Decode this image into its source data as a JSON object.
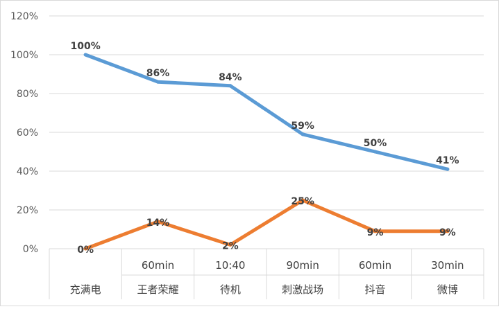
{
  "chart_data": {
    "type": "line",
    "title": "",
    "xlabel": "",
    "ylabel": "",
    "ylim": [
      0,
      120
    ],
    "yticks": [
      "0%",
      "20%",
      "40%",
      "60%",
      "80%",
      "100%",
      "120%"
    ],
    "grid": true,
    "legend": "none",
    "categories": [
      {
        "top": "",
        "bottom": "充满电"
      },
      {
        "top": "60min",
        "bottom": "王者荣耀"
      },
      {
        "top": "10:40",
        "bottom": "待机"
      },
      {
        "top": "90min",
        "bottom": "刺激战场"
      },
      {
        "top": "60min",
        "bottom": "抖音"
      },
      {
        "top": "30min",
        "bottom": "微博"
      }
    ],
    "series": [
      {
        "color": "#5b9bd5",
        "values": [
          100,
          86,
          84,
          59,
          50,
          41
        ],
        "labels": [
          "100%",
          "86%",
          "84%",
          "59%",
          "50%",
          "41%"
        ]
      },
      {
        "color": "#ed7d31",
        "values": [
          0,
          14,
          2,
          25,
          9,
          9
        ],
        "labels": [
          "0%",
          "14%",
          "2%",
          "25%",
          "9%",
          "9%"
        ]
      }
    ]
  }
}
